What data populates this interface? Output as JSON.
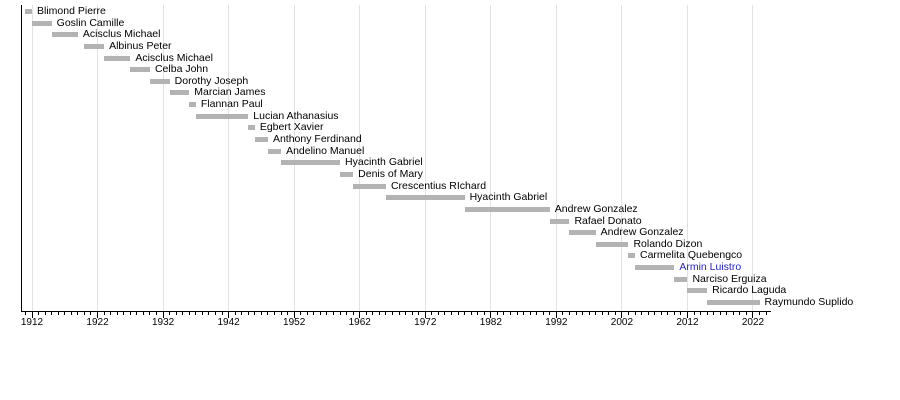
{
  "chart_data": {
    "type": "bar",
    "subtype": "timeline-gantt",
    "title": "",
    "xlabel": "",
    "ylabel": "",
    "orientation": "horizontal",
    "legend": null,
    "x_axis": {
      "min_year": 1910.5,
      "max_year": 2024.6,
      "major_ticks": [
        1912,
        1922,
        1932,
        1942,
        1952,
        1962,
        1972,
        1982,
        1992,
        2002,
        2012,
        2022
      ],
      "minor_tick_every_years": 1,
      "minor_tick_start": 1911,
      "minor_tick_end": 2024,
      "grid": "vertical light lines at decade ticks"
    },
    "bars": [
      {
        "label": "Blimond Pierre",
        "start": 1911,
        "end": 1912
      },
      {
        "label": "Goslin Camille",
        "start": 1912,
        "end": 1915
      },
      {
        "label": "Acisclus Michael",
        "start": 1915,
        "end": 1919
      },
      {
        "label": "Albinus Peter",
        "start": 1920,
        "end": 1923
      },
      {
        "label": "Acisclus Michael",
        "start": 1923,
        "end": 1927
      },
      {
        "label": "Celba John",
        "start": 1927,
        "end": 1930
      },
      {
        "label": "Dorothy Joseph",
        "start": 1930,
        "end": 1933
      },
      {
        "label": "Marcian James",
        "start": 1933,
        "end": 1936
      },
      {
        "label": "Flannan Paul",
        "start": 1936,
        "end": 1937
      },
      {
        "label": "Lucian Athanasius",
        "start": 1937,
        "end": 1945
      },
      {
        "label": "Egbert Xavier",
        "start": 1945,
        "end": 1946
      },
      {
        "label": "Anthony Ferdinand",
        "start": 1946,
        "end": 1948
      },
      {
        "label": "Andelino Manuel",
        "start": 1948,
        "end": 1950
      },
      {
        "label": "Hyacinth Gabriel",
        "start": 1950,
        "end": 1959
      },
      {
        "label": "Denis of Mary",
        "start": 1959,
        "end": 1961
      },
      {
        "label": "Crescentius RIchard",
        "start": 1961,
        "end": 1966
      },
      {
        "label": "Hyacinth Gabriel",
        "start": 1966,
        "end": 1978
      },
      {
        "label": "Andrew Gonzalez",
        "start": 1978,
        "end": 1991
      },
      {
        "label": "Rafael Donato",
        "start": 1991,
        "end": 1994
      },
      {
        "label": "Andrew Gonzalez",
        "start": 1994,
        "end": 1998
      },
      {
        "label": "Rolando Dizon",
        "start": 1998,
        "end": 2003
      },
      {
        "label": "Carmelita Quebengco",
        "start": 2003,
        "end": 2004
      },
      {
        "label": "Armin Luistro",
        "start": 2004,
        "end": 2010,
        "is_link": true
      },
      {
        "label": "Narciso Erguiza",
        "start": 2010,
        "end": 2012
      },
      {
        "label": "Ricardo Laguda",
        "start": 2012,
        "end": 2015
      },
      {
        "label": "Raymundo Suplido",
        "start": 2015,
        "end": 2023
      }
    ],
    "colors": {
      "bar": "#b3b3b3",
      "label": "#000000",
      "link_label": "#2222cc",
      "grid_line": "#e2e2e2",
      "axis": "#000000",
      "background": "#ffffff"
    }
  }
}
